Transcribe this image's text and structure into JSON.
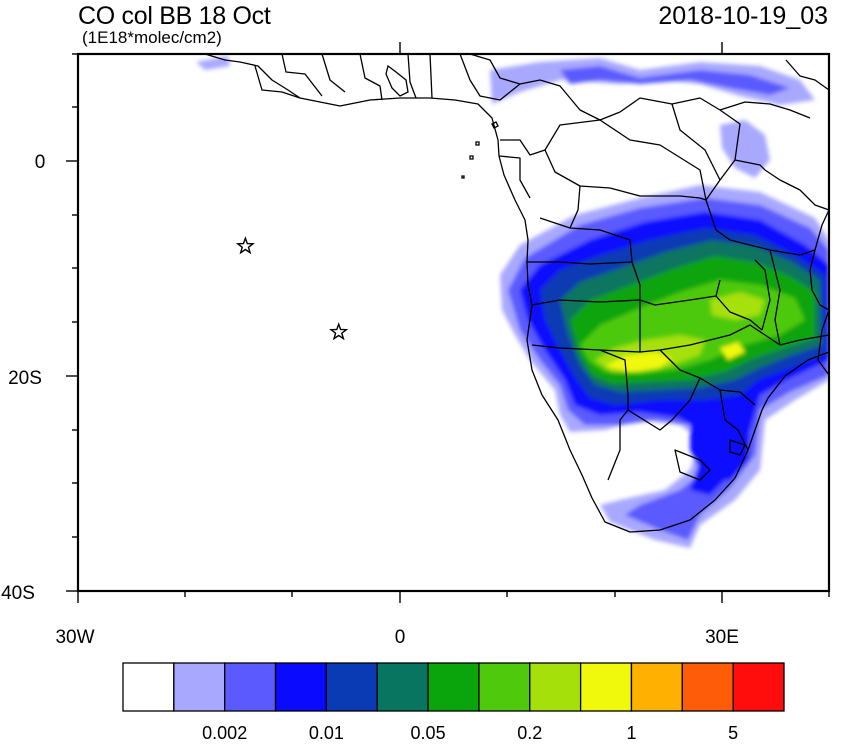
{
  "header": {
    "title": "CO col BB 18 Oct",
    "subtitle": "(1E18*molec/cm2)",
    "datetime": "2018-10-19_03"
  },
  "map": {
    "lon_range": [
      -30,
      40
    ],
    "lat_range": [
      -40,
      10
    ],
    "x_ticks": [
      {
        "value": -30,
        "label": "30W"
      },
      {
        "value": 0,
        "label": "0"
      },
      {
        "value": 30,
        "label": "30E"
      }
    ],
    "y_ticks": [
      {
        "value": 0,
        "label": "0"
      },
      {
        "value": -20,
        "label": "20S"
      },
      {
        "value": -40,
        "label": "40S"
      }
    ],
    "markers": [
      {
        "name": "star-marker-north",
        "lon": -14.4,
        "lat": -7.9
      },
      {
        "name": "star-marker-south",
        "lon": -5.7,
        "lat": -15.9
      }
    ]
  },
  "colorbar": {
    "colors": [
      "#ffffff",
      "#a8a8ff",
      "#5a5aff",
      "#0a0aff",
      "#0a3ab4",
      "#087561",
      "#0aa40c",
      "#4ec90b",
      "#a6e00a",
      "#f0f80c",
      "#ffb000",
      "#ff5c0a",
      "#ff0c0c"
    ],
    "labels": [
      {
        "after_box": 2,
        "text": "0.002"
      },
      {
        "after_box": 4,
        "text": "0.01"
      },
      {
        "after_box": 6,
        "text": "0.05"
      },
      {
        "after_box": 8,
        "text": "0.2"
      },
      {
        "after_box": 10,
        "text": "1"
      },
      {
        "after_box": 12,
        "text": "5"
      }
    ]
  }
}
